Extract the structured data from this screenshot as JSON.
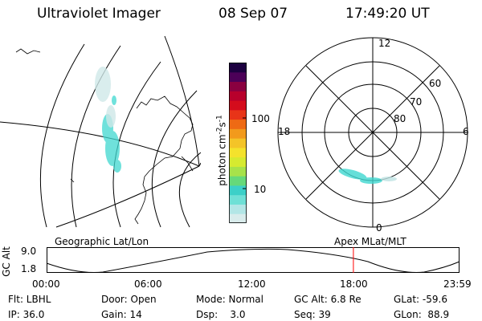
{
  "header": {
    "instrument": "Ultraviolet Imager",
    "date": "08 Sep 07",
    "time": "17:49:20 UT"
  },
  "colorbar": {
    "label": "photon cm",
    "exp1": "-2",
    "mid": "s",
    "exp2": "-1",
    "ticks": [
      "100",
      "10"
    ],
    "colors": [
      "#d9ecec",
      "#b3e6e6",
      "#6fe0d6",
      "#3cd0c8",
      "#66d97a",
      "#a7e24a",
      "#d6ea30",
      "#f4e22c",
      "#f4c428",
      "#f29a1c",
      "#ee6a14",
      "#e83418",
      "#d40c1c",
      "#b8002c",
      "#8a0040",
      "#4c0058",
      "#1c0040"
    ]
  },
  "polar": {
    "mlt_labels": [
      "12",
      "18",
      "6",
      "0"
    ],
    "lat_labels": [
      "60",
      "70",
      "80"
    ]
  },
  "timeline": {
    "y_axis_label": "GC Alt",
    "y_ticks": [
      "9.0",
      "1.8"
    ],
    "left_caption": "Geographic Lat/Lon",
    "right_caption": "Apex MLat/MLT",
    "x_ticks": [
      "00:00",
      "06:00",
      "12:00",
      "18:00",
      "23:59"
    ],
    "current_fraction": 0.743
  },
  "info": {
    "filter": "Flt: LBHL",
    "ip": "IP: 36.0",
    "door": "Door: Open",
    "gain": "Gain: 14",
    "mode": "Mode: Normal",
    "dsp": "Dsp:    3.0",
    "gc_alt": "GC Alt: 6.8 Re",
    "seq": "Seq: 39",
    "glat": "GLat: -59.6",
    "glon": "GLon:  88.9"
  },
  "colors": {
    "aurora": "#3fd8d0",
    "current_time_marker": "#ff0000"
  }
}
